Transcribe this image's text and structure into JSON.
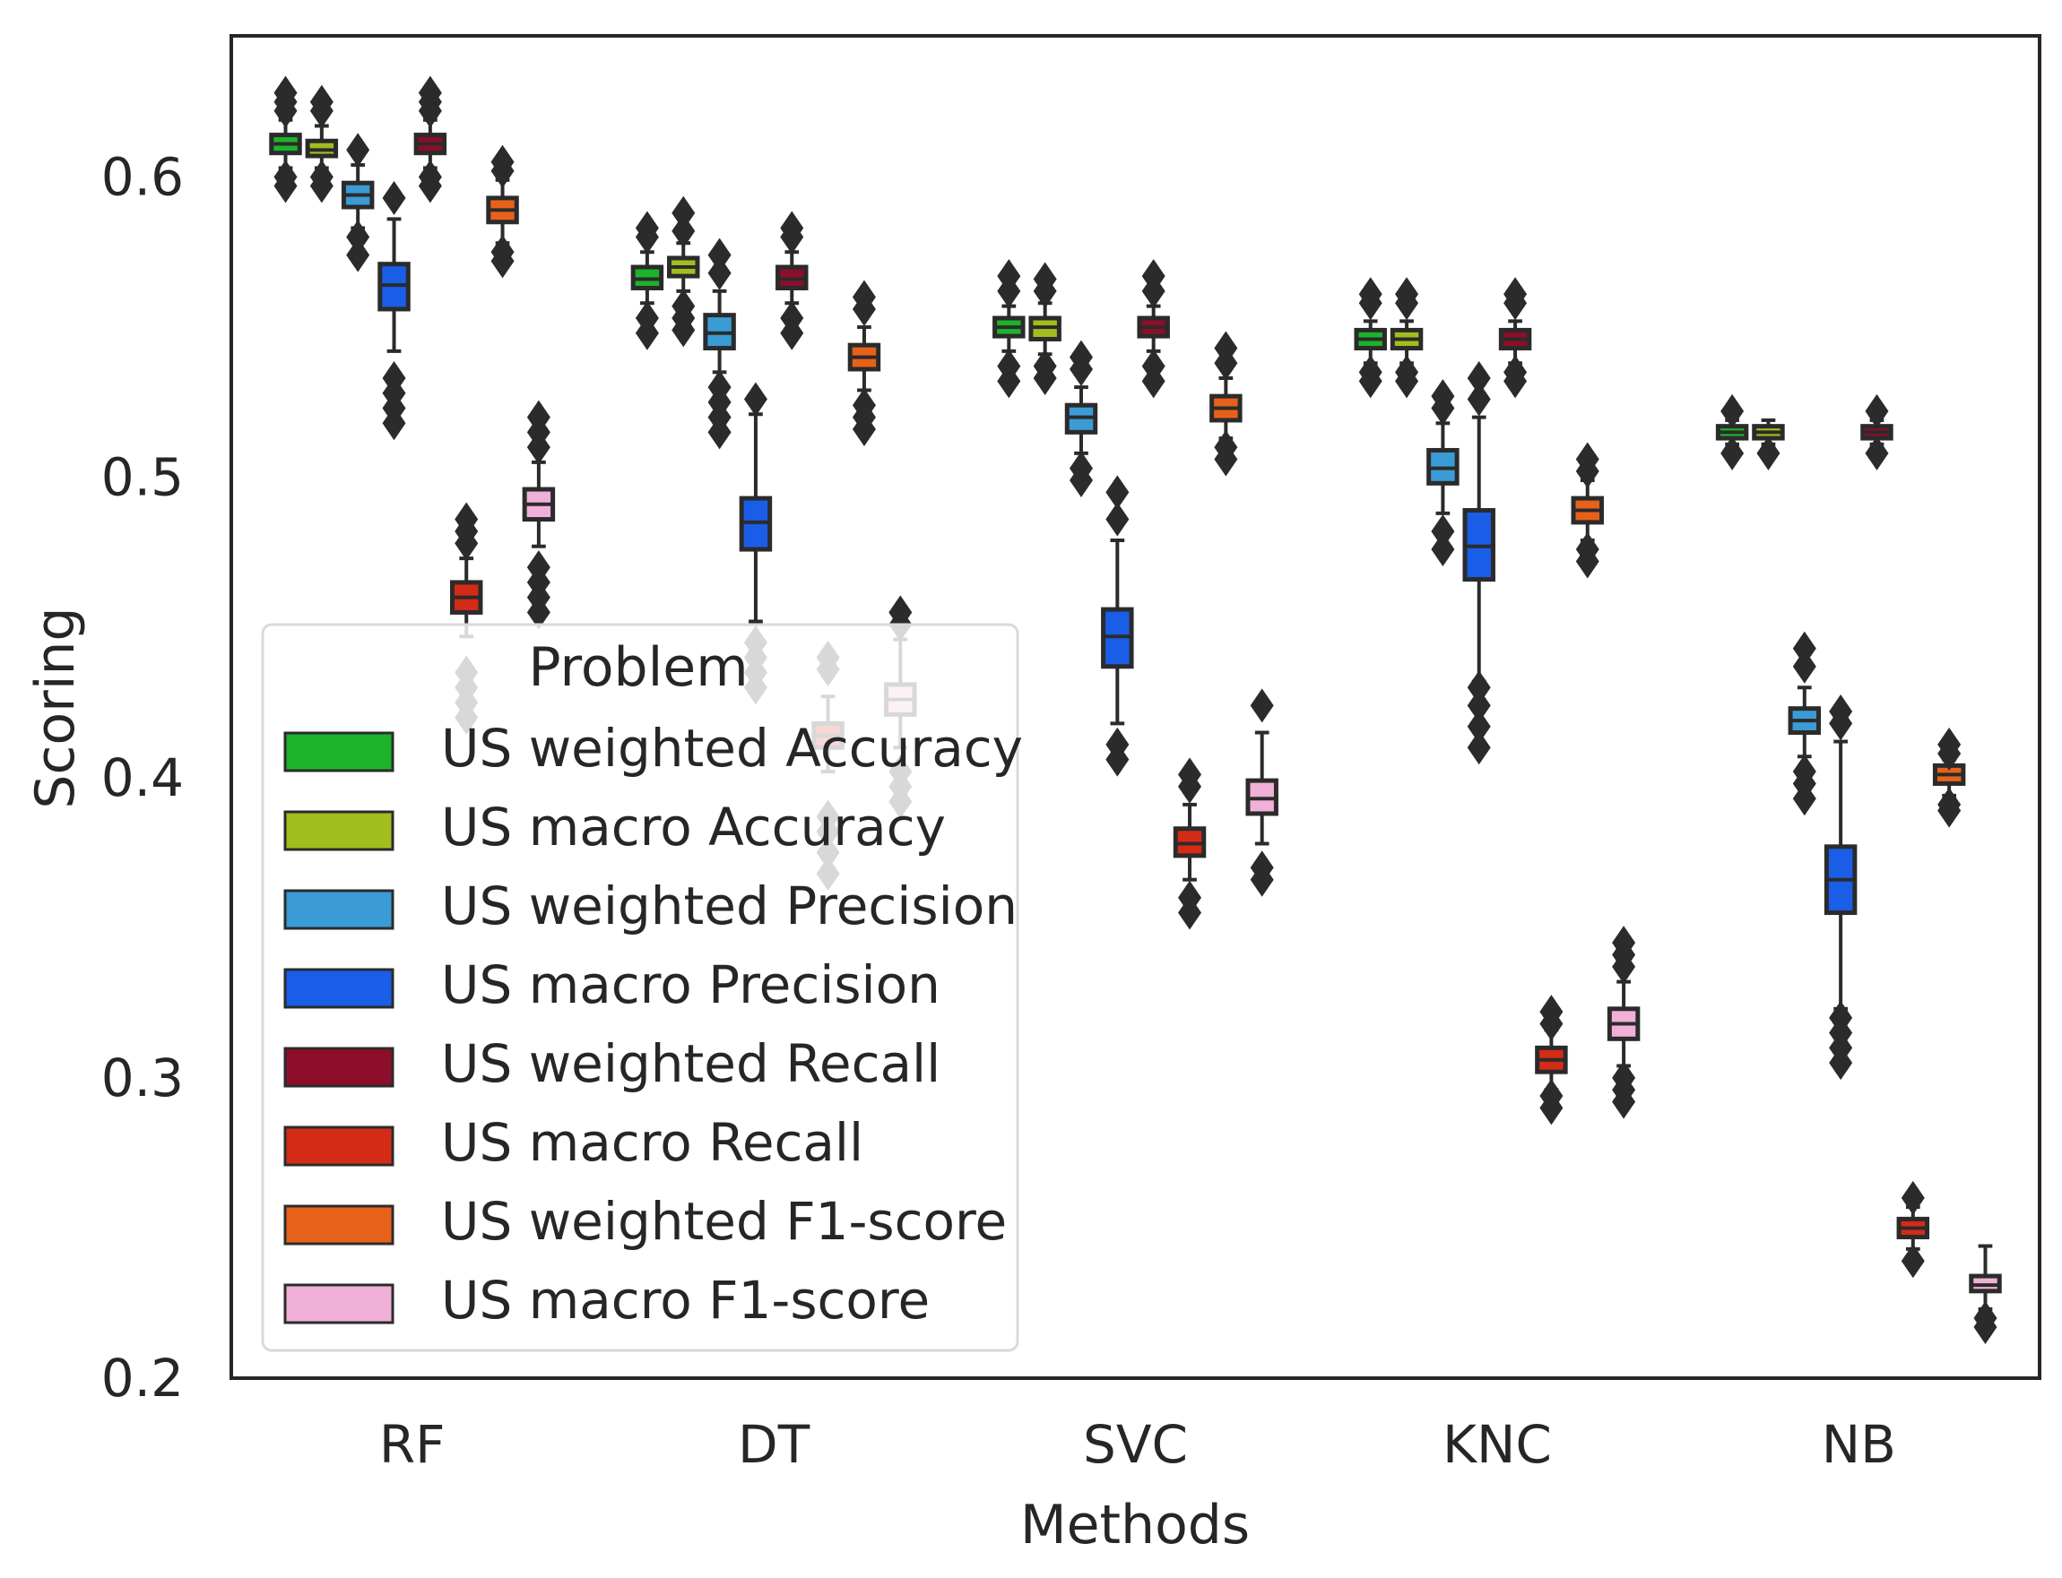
{
  "chart_data": {
    "type": "box",
    "title": "",
    "xlabel": "Methods",
    "ylabel": "Scoring",
    "ylim": [
      0.2,
      0.647
    ],
    "yticks": [
      "0.2",
      "0.3",
      "0.4",
      "0.5",
      "0.6"
    ],
    "ytick_values": [
      0.2,
      0.3,
      0.4,
      0.5,
      0.6
    ],
    "grid": false,
    "legend_position": "lower-left",
    "categories": [
      "RF",
      "DT",
      "SVC",
      "KNC",
      "NB"
    ],
    "legend": {
      "title": "Problem",
      "entries": [
        "US weighted Accuracy",
        "US macro Accuracy",
        "US weighted Precision",
        "US macro Precision",
        "US weighted Recall",
        "US macro Recall",
        "US weighted F1-score",
        "US macro F1-score"
      ]
    },
    "colors": [
      "#1db32a",
      "#a2be1e",
      "#3a9bd5",
      "#1a5de6",
      "#8c0e2a",
      "#d42b17",
      "#e8611a",
      "#f0b0d8"
    ],
    "edge_color": "#2b2b2b",
    "series": [
      {
        "name": "US weighted Accuracy",
        "boxes": [
          {
            "q1": 0.608,
            "median": 0.611,
            "q3": 0.614,
            "whislo": 0.603,
            "whishi": 0.619,
            "fliers": [
              0.597,
              0.6,
              0.622,
              0.625,
              0.628
            ]
          },
          {
            "q1": 0.563,
            "median": 0.566,
            "q3": 0.57,
            "whislo": 0.558,
            "whishi": 0.575,
            "fliers": [
              0.548,
              0.553,
              0.58,
              0.583
            ]
          },
          {
            "q1": 0.547,
            "median": 0.55,
            "q3": 0.553,
            "whislo": 0.542,
            "whishi": 0.557,
            "fliers": [
              0.532,
              0.537,
              0.562,
              0.567
            ]
          },
          {
            "q1": 0.543,
            "median": 0.546,
            "q3": 0.549,
            "whislo": 0.538,
            "whishi": 0.552,
            "fliers": [
              0.532,
              0.535,
              0.558,
              0.561
            ]
          },
          {
            "q1": 0.513,
            "median": 0.515,
            "q3": 0.517,
            "whislo": 0.511,
            "whishi": 0.519,
            "fliers": [
              0.508,
              0.522
            ]
          }
        ]
      },
      {
        "name": "US macro Accuracy",
        "boxes": [
          {
            "q1": 0.607,
            "median": 0.609,
            "q3": 0.612,
            "whislo": 0.603,
            "whishi": 0.617,
            "fliers": [
              0.597,
              0.6,
              0.622,
              0.625
            ]
          },
          {
            "q1": 0.567,
            "median": 0.57,
            "q3": 0.573,
            "whislo": 0.562,
            "whishi": 0.578,
            "fliers": [
              0.549,
              0.553,
              0.557,
              0.582,
              0.588
            ]
          },
          {
            "q1": 0.546,
            "median": 0.55,
            "q3": 0.553,
            "whislo": 0.541,
            "whishi": 0.558,
            "fliers": [
              0.533,
              0.537,
              0.562,
              0.566
            ]
          },
          {
            "q1": 0.543,
            "median": 0.546,
            "q3": 0.549,
            "whislo": 0.538,
            "whishi": 0.552,
            "fliers": [
              0.532,
              0.535,
              0.558,
              0.561
            ]
          },
          {
            "q1": 0.513,
            "median": 0.515,
            "q3": 0.517,
            "whislo": 0.511,
            "whishi": 0.519,
            "fliers": [
              0.508
            ]
          }
        ]
      },
      {
        "name": "US weighted Precision",
        "boxes": [
          {
            "q1": 0.59,
            "median": 0.594,
            "q3": 0.598,
            "whislo": 0.583,
            "whishi": 0.604,
            "fliers": [
              0.574,
              0.58,
              0.609
            ]
          },
          {
            "q1": 0.543,
            "median": 0.548,
            "q3": 0.554,
            "whislo": 0.535,
            "whishi": 0.562,
            "fliers": [
              0.515,
              0.52,
              0.525,
              0.53,
              0.568,
              0.574
            ]
          },
          {
            "q1": 0.515,
            "median": 0.52,
            "q3": 0.524,
            "whislo": 0.508,
            "whishi": 0.53,
            "fliers": [
              0.499,
              0.503,
              0.536,
              0.54
            ]
          },
          {
            "q1": 0.498,
            "median": 0.503,
            "q3": 0.509,
            "whislo": 0.488,
            "whishi": 0.518,
            "fliers": [
              0.476,
              0.482,
              0.523,
              0.527
            ]
          },
          {
            "q1": 0.415,
            "median": 0.419,
            "q3": 0.423,
            "whislo": 0.407,
            "whishi": 0.43,
            "fliers": [
              0.393,
              0.398,
              0.402,
              0.437,
              0.443
            ]
          }
        ]
      },
      {
        "name": "US macro Precision",
        "boxes": [
          {
            "q1": 0.556,
            "median": 0.564,
            "q3": 0.571,
            "whislo": 0.542,
            "whishi": 0.586,
            "fliers": [
              0.518,
              0.523,
              0.528,
              0.533,
              0.593
            ]
          },
          {
            "q1": 0.476,
            "median": 0.485,
            "q3": 0.493,
            "whislo": 0.452,
            "whishi": 0.521,
            "fliers": [
              0.43,
              0.435,
              0.44,
              0.445,
              0.526
            ]
          },
          {
            "q1": 0.437,
            "median": 0.447,
            "q3": 0.456,
            "whislo": 0.418,
            "whishi": 0.479,
            "fliers": [
              0.406,
              0.411,
              0.486,
              0.495
            ]
          },
          {
            "q1": 0.466,
            "median": 0.477,
            "q3": 0.489,
            "whislo": 0.432,
            "whishi": 0.52,
            "fliers": [
              0.41,
              0.417,
              0.424,
              0.43,
              0.526,
              0.533
            ]
          },
          {
            "q1": 0.355,
            "median": 0.366,
            "q3": 0.377,
            "whislo": 0.323,
            "whishi": 0.412,
            "fliers": [
              0.305,
              0.31,
              0.315,
              0.32,
              0.418,
              0.422
            ]
          }
        ]
      },
      {
        "name": "US weighted Recall",
        "boxes": [
          {
            "q1": 0.608,
            "median": 0.611,
            "q3": 0.614,
            "whislo": 0.603,
            "whishi": 0.619,
            "fliers": [
              0.597,
              0.6,
              0.622,
              0.625,
              0.628
            ]
          },
          {
            "q1": 0.563,
            "median": 0.566,
            "q3": 0.57,
            "whislo": 0.558,
            "whishi": 0.575,
            "fliers": [
              0.548,
              0.553,
              0.58,
              0.583
            ]
          },
          {
            "q1": 0.547,
            "median": 0.55,
            "q3": 0.553,
            "whislo": 0.542,
            "whishi": 0.557,
            "fliers": [
              0.532,
              0.537,
              0.562,
              0.567
            ]
          },
          {
            "q1": 0.543,
            "median": 0.546,
            "q3": 0.549,
            "whislo": 0.538,
            "whishi": 0.552,
            "fliers": [
              0.532,
              0.535,
              0.558,
              0.561
            ]
          },
          {
            "q1": 0.513,
            "median": 0.515,
            "q3": 0.517,
            "whislo": 0.511,
            "whishi": 0.519,
            "fliers": [
              0.508,
              0.522
            ]
          }
        ]
      },
      {
        "name": "US macro Recall",
        "boxes": [
          {
            "q1": 0.455,
            "median": 0.46,
            "q3": 0.465,
            "whislo": 0.447,
            "whishi": 0.473,
            "fliers": [
              0.42,
              0.425,
              0.43,
              0.435,
              0.478,
              0.482,
              0.486
            ]
          },
          {
            "q1": 0.41,
            "median": 0.414,
            "q3": 0.418,
            "whislo": 0.402,
            "whishi": 0.427,
            "fliers": [
              0.368,
              0.375,
              0.382,
              0.387,
              0.436,
              0.44
            ]
          },
          {
            "q1": 0.374,
            "median": 0.378,
            "q3": 0.383,
            "whislo": 0.366,
            "whishi": 0.391,
            "fliers": [
              0.355,
              0.36,
              0.397,
              0.401
            ]
          },
          {
            "q1": 0.302,
            "median": 0.306,
            "q3": 0.31,
            "whislo": 0.296,
            "whishi": 0.316,
            "fliers": [
              0.29,
              0.294,
              0.318,
              0.322
            ]
          },
          {
            "q1": 0.247,
            "median": 0.25,
            "q3": 0.253,
            "whislo": 0.243,
            "whishi": 0.257,
            "fliers": [
              0.239,
              0.26
            ]
          }
        ]
      },
      {
        "name": "US weighted F1-score",
        "boxes": [
          {
            "q1": 0.585,
            "median": 0.589,
            "q3": 0.593,
            "whislo": 0.578,
            "whishi": 0.599,
            "fliers": [
              0.572,
              0.575,
              0.602,
              0.605
            ]
          },
          {
            "q1": 0.536,
            "median": 0.54,
            "q3": 0.544,
            "whislo": 0.529,
            "whishi": 0.55,
            "fliers": [
              0.516,
              0.52,
              0.524,
              0.556,
              0.56
            ]
          },
          {
            "q1": 0.519,
            "median": 0.523,
            "q3": 0.527,
            "whislo": 0.513,
            "whishi": 0.533,
            "fliers": [
              0.506,
              0.51,
              0.538,
              0.543
            ]
          },
          {
            "q1": 0.485,
            "median": 0.489,
            "q3": 0.493,
            "whislo": 0.479,
            "whishi": 0.499,
            "fliers": [
              0.472,
              0.476,
              0.502,
              0.506
            ]
          },
          {
            "q1": 0.398,
            "median": 0.401,
            "q3": 0.404,
            "whislo": 0.394,
            "whishi": 0.406,
            "fliers": [
              0.389,
              0.391,
              0.408,
              0.411
            ]
          }
        ]
      },
      {
        "name": "US macro F1-score",
        "boxes": [
          {
            "q1": 0.486,
            "median": 0.491,
            "q3": 0.496,
            "whislo": 0.477,
            "whishi": 0.505,
            "fliers": [
              0.455,
              0.46,
              0.465,
              0.47,
              0.51,
              0.515,
              0.52
            ]
          },
          {
            "q1": 0.421,
            "median": 0.426,
            "q3": 0.431,
            "whislo": 0.41,
            "whishi": 0.446,
            "fliers": [
              0.392,
              0.397,
              0.402,
              0.451,
              0.455
            ]
          },
          {
            "q1": 0.388,
            "median": 0.393,
            "q3": 0.399,
            "whislo": 0.378,
            "whishi": 0.415,
            "fliers": [
              0.366,
              0.37,
              0.424
            ]
          },
          {
            "q1": 0.313,
            "median": 0.318,
            "q3": 0.323,
            "whislo": 0.304,
            "whishi": 0.332,
            "fliers": [
              0.292,
              0.296,
              0.3,
              0.337,
              0.341,
              0.345
            ]
          },
          {
            "q1": 0.229,
            "median": 0.231,
            "q3": 0.234,
            "whislo": 0.223,
            "whishi": 0.244,
            "fliers": [
              0.217,
              0.22
            ]
          }
        ]
      }
    ]
  }
}
